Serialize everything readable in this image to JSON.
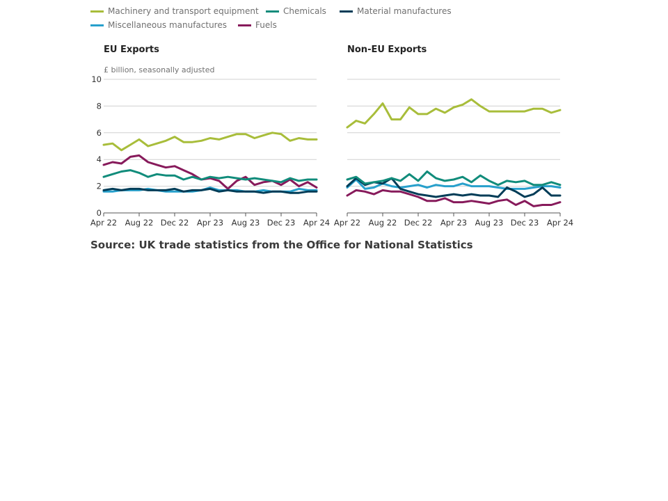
{
  "legend": {
    "items": [
      {
        "label": "Machinery and transport equipment",
        "color": "#a8bd3a"
      },
      {
        "label": "Chemicals",
        "color": "#118c7b"
      },
      {
        "label": "Material manufactures",
        "color": "#003c57"
      },
      {
        "label": "Miscellaneous manufactures",
        "color": "#27a0cc"
      },
      {
        "label": "Fuels",
        "color": "#871a5b"
      }
    ]
  },
  "source": "Source: UK trade statistics from the Office for National Statistics",
  "chart_data": [
    {
      "type": "line",
      "title": "EU Exports",
      "ylabel": "£ billion, seasonally adjusted",
      "ylim": [
        0,
        10
      ],
      "yticks": [
        "0",
        "2",
        "4",
        "6",
        "8",
        "10"
      ],
      "xticks": [
        "Apr 22",
        "Aug 22",
        "Dec 22",
        "Apr 23",
        "Aug 23",
        "Dec 23",
        "Apr 24"
      ],
      "x": [
        "Apr 22",
        "May 22",
        "Jun 22",
        "Jul 22",
        "Aug 22",
        "Sep 22",
        "Oct 22",
        "Nov 22",
        "Dec 22",
        "Jan 23",
        "Feb 23",
        "Mar 23",
        "Apr 23",
        "May 23",
        "Jun 23",
        "Jul 23",
        "Aug 23",
        "Sep 23",
        "Oct 23",
        "Nov 23",
        "Dec 23",
        "Jan 24",
        "Feb 24",
        "Mar 24",
        "Apr 24"
      ],
      "grid": true,
      "series": [
        {
          "name": "Machinery and transport equipment",
          "color": "#a8bd3a",
          "values": [
            5.1,
            5.2,
            4.7,
            5.1,
            5.5,
            5.0,
            5.2,
            5.4,
            5.7,
            5.3,
            5.3,
            5.4,
            5.6,
            5.5,
            5.7,
            5.9,
            5.9,
            5.6,
            5.8,
            6.0,
            5.9,
            5.4,
            5.6,
            5.5,
            5.5
          ]
        },
        {
          "name": "Chemicals",
          "color": "#118c7b",
          "values": [
            2.7,
            2.9,
            3.1,
            3.2,
            3.0,
            2.7,
            2.9,
            2.8,
            2.8,
            2.5,
            2.7,
            2.5,
            2.7,
            2.6,
            2.7,
            2.6,
            2.5,
            2.6,
            2.5,
            2.4,
            2.3,
            2.6,
            2.4,
            2.5,
            2.5
          ]
        },
        {
          "name": "Material manufactures",
          "color": "#003c57",
          "values": [
            1.7,
            1.8,
            1.7,
            1.8,
            1.8,
            1.7,
            1.7,
            1.7,
            1.8,
            1.6,
            1.7,
            1.7,
            1.8,
            1.6,
            1.7,
            1.6,
            1.6,
            1.6,
            1.5,
            1.6,
            1.6,
            1.5,
            1.5,
            1.6,
            1.6
          ]
        },
        {
          "name": "Miscellaneous manufactures",
          "color": "#27a0cc",
          "values": [
            1.6,
            1.6,
            1.7,
            1.7,
            1.7,
            1.8,
            1.7,
            1.6,
            1.6,
            1.6,
            1.6,
            1.7,
            1.9,
            1.7,
            1.7,
            1.7,
            1.6,
            1.6,
            1.7,
            1.6,
            1.6,
            1.6,
            1.8,
            1.7,
            1.7
          ]
        },
        {
          "name": "Fuels",
          "color": "#871a5b",
          "values": [
            3.6,
            3.8,
            3.7,
            4.2,
            4.3,
            3.8,
            3.6,
            3.4,
            3.5,
            3.2,
            2.9,
            2.5,
            2.6,
            2.4,
            1.8,
            2.4,
            2.7,
            2.1,
            2.3,
            2.4,
            2.1,
            2.5,
            2.0,
            2.3,
            1.9
          ]
        }
      ]
    },
    {
      "type": "line",
      "title": "Non-EU Exports",
      "ylim": [
        0,
        10
      ],
      "xticks": [
        "Apr 22",
        "Aug 22",
        "Dec 22",
        "Apr 23",
        "Aug 23",
        "Dec 23",
        "Apr 24"
      ],
      "x": [
        "Apr 22",
        "May 22",
        "Jun 22",
        "Jul 22",
        "Aug 22",
        "Sep 22",
        "Oct 22",
        "Nov 22",
        "Dec 22",
        "Jan 23",
        "Feb 23",
        "Mar 23",
        "Apr 23",
        "May 23",
        "Jun 23",
        "Jul 23",
        "Aug 23",
        "Sep 23",
        "Oct 23",
        "Nov 23",
        "Dec 23",
        "Jan 24",
        "Feb 24",
        "Mar 24",
        "Apr 24"
      ],
      "grid": true,
      "series": [
        {
          "name": "Machinery and transport equipment",
          "color": "#a8bd3a",
          "values": [
            6.4,
            6.9,
            6.7,
            7.4,
            8.2,
            7.0,
            7.0,
            7.9,
            7.4,
            7.4,
            7.8,
            7.5,
            7.9,
            8.1,
            8.5,
            8.0,
            7.6,
            7.6,
            7.6,
            7.6,
            7.6,
            7.8,
            7.8,
            7.5,
            7.7
          ]
        },
        {
          "name": "Chemicals",
          "color": "#118c7b",
          "values": [
            2.5,
            2.7,
            2.2,
            2.3,
            2.4,
            2.6,
            2.4,
            2.9,
            2.4,
            3.1,
            2.6,
            2.4,
            2.5,
            2.7,
            2.3,
            2.8,
            2.4,
            2.1,
            2.4,
            2.3,
            2.4,
            2.1,
            2.1,
            2.3,
            2.1
          ]
        },
        {
          "name": "Material manufactures",
          "color": "#003c57",
          "values": [
            2.0,
            2.6,
            2.1,
            2.3,
            2.2,
            2.6,
            1.8,
            1.6,
            1.4,
            1.3,
            1.2,
            1.3,
            1.4,
            1.3,
            1.4,
            1.3,
            1.3,
            1.2,
            1.9,
            1.6,
            1.2,
            1.4,
            1.9,
            1.3,
            1.3
          ]
        },
        {
          "name": "Miscellaneous manufactures",
          "color": "#27a0cc",
          "values": [
            1.9,
            2.5,
            1.8,
            1.9,
            2.2,
            2.0,
            1.9,
            2.0,
            2.1,
            1.9,
            2.1,
            2.0,
            2.0,
            2.2,
            2.0,
            2.0,
            2.0,
            1.9,
            1.8,
            1.8,
            1.8,
            1.9,
            2.0,
            2.0,
            1.9
          ]
        },
        {
          "name": "Fuels",
          "color": "#871a5b",
          "values": [
            1.3,
            1.7,
            1.6,
            1.4,
            1.7,
            1.6,
            1.6,
            1.4,
            1.2,
            0.9,
            0.9,
            1.1,
            0.8,
            0.8,
            0.9,
            0.8,
            0.7,
            0.9,
            1.0,
            0.6,
            0.9,
            0.5,
            0.6,
            0.6,
            0.8
          ]
        }
      ]
    }
  ]
}
